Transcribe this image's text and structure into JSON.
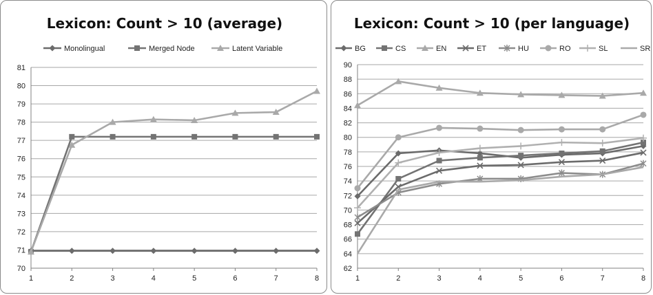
{
  "chart_data": [
    {
      "type": "line",
      "title": "Lexicon: Count > 10 (average)",
      "x": [
        1,
        2,
        3,
        4,
        5,
        6,
        7,
        8
      ],
      "ylim": [
        70,
        81
      ],
      "yticks": [
        70,
        71,
        72,
        73,
        74,
        75,
        76,
        77,
        78,
        79,
        80,
        81
      ],
      "grid": true,
      "legend": "top",
      "series": [
        {
          "name": "Monolingual",
          "marker": "diamond",
          "color": "#6b6b6b",
          "values": [
            70.95,
            70.95,
            70.95,
            70.95,
            70.95,
            70.95,
            70.95,
            70.95
          ]
        },
        {
          "name": "Merged Node",
          "marker": "square",
          "color": "#737373",
          "values": [
            70.9,
            77.2,
            77.2,
            77.2,
            77.2,
            77.2,
            77.2,
            77.2
          ]
        },
        {
          "name": "Latent Variable",
          "marker": "triangle",
          "color": "#a9a9a9",
          "values": [
            70.9,
            76.75,
            78.0,
            78.15,
            78.1,
            78.5,
            78.55,
            79.7
          ]
        }
      ]
    },
    {
      "type": "line",
      "title": "Lexicon: Count > 10 (per language)",
      "x": [
        1,
        2,
        3,
        4,
        5,
        6,
        7,
        8
      ],
      "ylim": [
        62,
        90
      ],
      "yticks": [
        62,
        64,
        66,
        68,
        70,
        72,
        74,
        76,
        78,
        80,
        82,
        84,
        86,
        88,
        90
      ],
      "grid": true,
      "legend": "top",
      "series": [
        {
          "name": "BG",
          "marker": "diamond",
          "color": "#6b6b6b",
          "values": [
            71.9,
            77.8,
            78.2,
            77.8,
            77.2,
            77.6,
            77.8,
            78.8
          ]
        },
        {
          "name": "CS",
          "marker": "square",
          "color": "#737373",
          "values": [
            66.7,
            74.3,
            76.8,
            77.2,
            77.5,
            77.8,
            78.1,
            79.3
          ]
        },
        {
          "name": "EN",
          "marker": "triangle",
          "color": "#a9a9a9",
          "values": [
            84.4,
            87.7,
            86.8,
            86.1,
            85.9,
            85.8,
            85.7,
            86.1
          ]
        },
        {
          "name": "ET",
          "marker": "x",
          "color": "#6b6b6b",
          "values": [
            68.2,
            73.2,
            75.4,
            76.1,
            76.2,
            76.6,
            76.8,
            77.9
          ]
        },
        {
          "name": "HU",
          "marker": "star",
          "color": "#8c8c8c",
          "values": [
            69.0,
            72.4,
            73.6,
            74.3,
            74.3,
            75.1,
            74.9,
            76.4
          ]
        },
        {
          "name": "RO",
          "marker": "circle",
          "color": "#a9a9a9",
          "values": [
            73.0,
            80.0,
            81.3,
            81.2,
            81.0,
            81.1,
            81.1,
            83.1
          ]
        },
        {
          "name": "SL",
          "marker": "plus",
          "color": "#b0b0b0",
          "values": [
            70.3,
            76.5,
            77.9,
            78.5,
            78.8,
            79.3,
            79.2,
            79.9
          ]
        },
        {
          "name": "SR",
          "marker": "none",
          "color": "#a9a9a9",
          "values": [
            64.0,
            72.8,
            73.9,
            73.9,
            74.1,
            74.6,
            74.9,
            75.9
          ]
        }
      ]
    }
  ]
}
